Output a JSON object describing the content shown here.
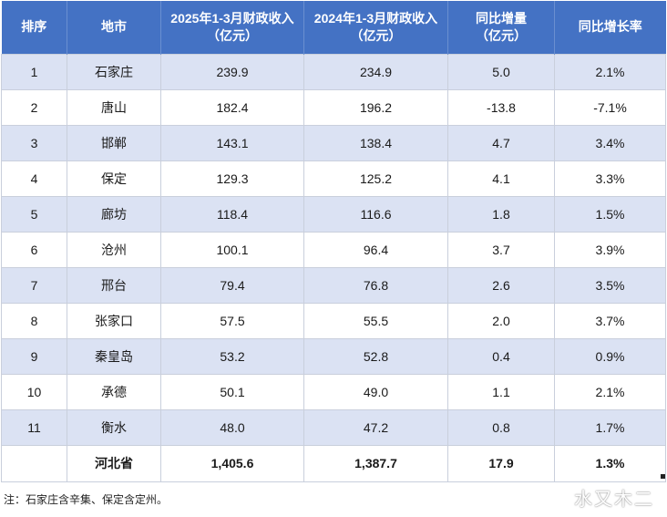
{
  "table": {
    "headers": [
      {
        "line1": "排序",
        "line2": ""
      },
      {
        "line1": "地市",
        "line2": ""
      },
      {
        "line1": "2025年1-3月财政收入",
        "line2": "（亿元）"
      },
      {
        "line1": "2024年1-3月财政收入",
        "line2": "（亿元）"
      },
      {
        "line1": "同比增量",
        "line2": "（亿元）"
      },
      {
        "line1": "同比增长率",
        "line2": ""
      }
    ],
    "rows": [
      {
        "rank": "1",
        "city": "石家庄",
        "rev2025": "239.9",
        "rev2024": "234.9",
        "increase": "5.0",
        "rate": "2.1%"
      },
      {
        "rank": "2",
        "city": "唐山",
        "rev2025": "182.4",
        "rev2024": "196.2",
        "increase": "-13.8",
        "rate": "-7.1%"
      },
      {
        "rank": "3",
        "city": "邯郸",
        "rev2025": "143.1",
        "rev2024": "138.4",
        "increase": "4.7",
        "rate": "3.4%"
      },
      {
        "rank": "4",
        "city": "保定",
        "rev2025": "129.3",
        "rev2024": "125.2",
        "increase": "4.1",
        "rate": "3.3%"
      },
      {
        "rank": "5",
        "city": "廊坊",
        "rev2025": "118.4",
        "rev2024": "116.6",
        "increase": "1.8",
        "rate": "1.5%"
      },
      {
        "rank": "6",
        "city": "沧州",
        "rev2025": "100.1",
        "rev2024": "96.4",
        "increase": "3.7",
        "rate": "3.9%"
      },
      {
        "rank": "7",
        "city": "邢台",
        "rev2025": "79.4",
        "rev2024": "76.8",
        "increase": "2.6",
        "rate": "3.5%"
      },
      {
        "rank": "8",
        "city": "张家口",
        "rev2025": "57.5",
        "rev2024": "55.5",
        "increase": "2.0",
        "rate": "3.7%"
      },
      {
        "rank": "9",
        "city": "秦皇岛",
        "rev2025": "53.2",
        "rev2024": "52.8",
        "increase": "0.4",
        "rate": "0.9%"
      },
      {
        "rank": "10",
        "city": "承德",
        "rev2025": "50.1",
        "rev2024": "49.0",
        "increase": "1.1",
        "rate": "2.1%"
      },
      {
        "rank": "11",
        "city": "衡水",
        "rev2025": "48.0",
        "rev2024": "47.2",
        "increase": "0.8",
        "rate": "1.7%"
      }
    ],
    "total": {
      "rank": "",
      "city": "河北省",
      "rev2025": "1,405.6",
      "rev2024": "1,387.7",
      "increase": "17.9",
      "rate": "1.3%"
    }
  },
  "note": "注：石家庄含辛集、保定含定州。",
  "watermark": "水又木二",
  "colors": {
    "header_bg": "#4472c4",
    "band_bg": "#dbe2f3",
    "header_text": "#ffffff"
  }
}
